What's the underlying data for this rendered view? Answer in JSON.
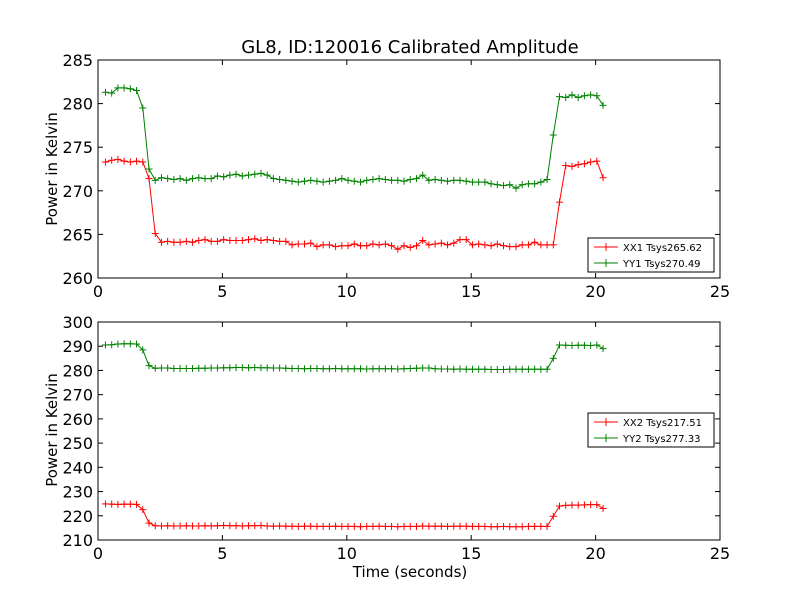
{
  "colors": {
    "red": "#ff0000",
    "green": "#008000",
    "axis": "#000000",
    "background": "#ffffff"
  },
  "chart_data": [
    {
      "type": "line",
      "title": "GL8, ID:120016 Calibrated Amplitude",
      "xlabel": "",
      "ylabel": "Power in Kelvin",
      "xlim": [
        0,
        25
      ],
      "ylim": [
        260,
        285
      ],
      "xticks": [
        0,
        5,
        10,
        15,
        20,
        25
      ],
      "yticks": [
        260,
        265,
        270,
        275,
        280,
        285
      ],
      "legend_position": "lower-right",
      "grid": false,
      "series": [
        {
          "name": "XX1 Tsys265.62",
          "color": "red",
          "x": [
            0.3,
            0.55,
            0.8,
            1.05,
            1.3,
            1.55,
            1.8,
            2.05,
            2.3,
            2.55,
            2.8,
            3.05,
            3.3,
            3.55,
            3.8,
            4.05,
            4.3,
            4.55,
            4.8,
            5.05,
            5.3,
            5.55,
            5.8,
            6.05,
            6.3,
            6.55,
            6.8,
            7.05,
            7.3,
            7.55,
            7.8,
            8.05,
            8.3,
            8.55,
            8.8,
            9.05,
            9.3,
            9.55,
            9.8,
            10.05,
            10.3,
            10.55,
            10.8,
            11.05,
            11.3,
            11.55,
            11.8,
            12.05,
            12.3,
            12.55,
            12.8,
            13.05,
            13.3,
            13.55,
            13.8,
            14.05,
            14.3,
            14.55,
            14.8,
            15.05,
            15.3,
            15.55,
            15.8,
            16.05,
            16.3,
            16.55,
            16.8,
            17.05,
            17.3,
            17.55,
            17.8,
            18.05,
            18.3,
            18.55,
            18.8,
            19.05,
            19.3,
            19.55,
            19.8,
            20.05,
            20.3
          ],
          "y": [
            273.3,
            273.5,
            273.6,
            273.4,
            273.3,
            273.4,
            273.3,
            271.4,
            265.1,
            264.1,
            264.2,
            264.1,
            264.1,
            264.2,
            264.1,
            264.3,
            264.4,
            264.2,
            264.2,
            264.4,
            264.3,
            264.3,
            264.3,
            264.4,
            264.5,
            264.3,
            264.4,
            264.3,
            264.2,
            264.2,
            263.8,
            263.9,
            263.9,
            264.0,
            263.6,
            263.8,
            263.8,
            263.6,
            263.7,
            263.7,
            263.9,
            263.7,
            263.7,
            263.9,
            263.8,
            263.9,
            263.7,
            263.3,
            263.7,
            263.5,
            263.7,
            264.3,
            263.8,
            263.9,
            264.0,
            263.8,
            264.0,
            264.4,
            264.4,
            263.8,
            263.9,
            263.8,
            263.7,
            263.9,
            263.7,
            263.6,
            263.6,
            263.8,
            263.8,
            264.1,
            263.8,
            263.8,
            263.8,
            268.7,
            272.9,
            272.8,
            273.0,
            273.1,
            273.3,
            273.4,
            271.5
          ]
        },
        {
          "name": "YY1 Tsys270.49",
          "color": "green",
          "x": [
            0.3,
            0.55,
            0.8,
            1.05,
            1.3,
            1.55,
            1.8,
            2.05,
            2.3,
            2.55,
            2.8,
            3.05,
            3.3,
            3.55,
            3.8,
            4.05,
            4.3,
            4.55,
            4.8,
            5.05,
            5.3,
            5.55,
            5.8,
            6.05,
            6.3,
            6.55,
            6.8,
            7.05,
            7.3,
            7.55,
            7.8,
            8.05,
            8.3,
            8.55,
            8.8,
            9.05,
            9.3,
            9.55,
            9.8,
            10.05,
            10.3,
            10.55,
            10.8,
            11.05,
            11.3,
            11.55,
            11.8,
            12.05,
            12.3,
            12.55,
            12.8,
            13.05,
            13.3,
            13.55,
            13.8,
            14.05,
            14.3,
            14.55,
            14.8,
            15.05,
            15.3,
            15.55,
            15.8,
            16.05,
            16.3,
            16.55,
            16.8,
            17.05,
            17.3,
            17.55,
            17.8,
            18.05,
            18.3,
            18.55,
            18.8,
            19.05,
            19.3,
            19.55,
            19.8,
            20.05,
            20.3
          ],
          "y": [
            281.3,
            281.2,
            281.8,
            281.8,
            281.7,
            281.5,
            279.5,
            272.5,
            271.2,
            271.5,
            271.4,
            271.3,
            271.4,
            271.2,
            271.4,
            271.5,
            271.4,
            271.4,
            271.7,
            271.6,
            271.8,
            271.9,
            271.7,
            271.8,
            271.9,
            272.0,
            271.8,
            271.4,
            271.3,
            271.2,
            271.1,
            271.0,
            271.1,
            271.2,
            271.1,
            271.0,
            271.1,
            271.2,
            271.4,
            271.2,
            271.1,
            271.0,
            271.2,
            271.3,
            271.4,
            271.3,
            271.2,
            271.2,
            271.1,
            271.3,
            271.4,
            271.8,
            271.2,
            271.3,
            271.2,
            271.1,
            271.2,
            271.2,
            271.1,
            271.0,
            271.0,
            271.0,
            270.8,
            270.7,
            270.6,
            270.7,
            270.3,
            270.7,
            270.8,
            270.8,
            271.0,
            271.3,
            276.4,
            280.8,
            280.7,
            281.0,
            280.7,
            280.9,
            281.0,
            280.9,
            279.8
          ]
        }
      ]
    },
    {
      "type": "line",
      "title": "",
      "xlabel": "Time (seconds)",
      "ylabel": "Power in Kelvin",
      "xlim": [
        0,
        25
      ],
      "ylim": [
        210,
        300
      ],
      "xticks": [
        0,
        5,
        10,
        15,
        20,
        25
      ],
      "yticks": [
        210,
        220,
        230,
        240,
        250,
        260,
        270,
        280,
        290,
        300
      ],
      "legend_position": "center-right",
      "grid": false,
      "series": [
        {
          "name": "XX2 Tsys217.51",
          "color": "red",
          "x": [
            0.3,
            0.55,
            0.8,
            1.05,
            1.3,
            1.55,
            1.8,
            2.05,
            2.3,
            2.55,
            2.8,
            3.05,
            3.3,
            3.55,
            3.8,
            4.05,
            4.3,
            4.55,
            4.8,
            5.05,
            5.3,
            5.55,
            5.8,
            6.05,
            6.3,
            6.55,
            6.8,
            7.05,
            7.3,
            7.55,
            7.8,
            8.05,
            8.3,
            8.55,
            8.8,
            9.05,
            9.3,
            9.55,
            9.8,
            10.05,
            10.3,
            10.55,
            10.8,
            11.05,
            11.3,
            11.55,
            11.8,
            12.05,
            12.3,
            12.55,
            12.8,
            13.05,
            13.3,
            13.55,
            13.8,
            14.05,
            14.3,
            14.55,
            14.8,
            15.05,
            15.3,
            15.55,
            15.8,
            16.05,
            16.3,
            16.55,
            16.8,
            17.05,
            17.3,
            17.55,
            17.8,
            18.05,
            18.3,
            18.55,
            18.8,
            19.05,
            19.3,
            19.55,
            19.8,
            20.05,
            20.3
          ],
          "y": [
            224.9,
            224.8,
            224.7,
            224.8,
            224.8,
            224.7,
            222.5,
            217.0,
            215.9,
            215.8,
            215.9,
            215.8,
            215.8,
            215.9,
            215.8,
            215.8,
            215.9,
            215.8,
            215.9,
            216.0,
            215.9,
            215.9,
            215.8,
            215.9,
            215.9,
            216.0,
            215.8,
            215.7,
            215.8,
            215.7,
            215.7,
            215.6,
            215.7,
            215.7,
            215.6,
            215.6,
            215.6,
            215.7,
            215.6,
            215.6,
            215.6,
            215.5,
            215.6,
            215.6,
            215.7,
            215.6,
            215.6,
            215.5,
            215.6,
            215.6,
            215.6,
            215.8,
            215.7,
            215.7,
            215.7,
            215.6,
            215.7,
            215.7,
            215.7,
            215.6,
            215.6,
            215.6,
            215.5,
            215.5,
            215.6,
            215.5,
            215.5,
            215.5,
            215.6,
            215.6,
            215.6,
            215.6,
            219.8,
            224.0,
            224.3,
            224.4,
            224.4,
            224.5,
            224.6,
            224.6,
            223.0
          ]
        },
        {
          "name": "YY2 Tsys277.33",
          "color": "green",
          "x": [
            0.3,
            0.55,
            0.8,
            1.05,
            1.3,
            1.55,
            1.8,
            2.05,
            2.3,
            2.55,
            2.8,
            3.05,
            3.3,
            3.55,
            3.8,
            4.05,
            4.3,
            4.55,
            4.8,
            5.05,
            5.3,
            5.55,
            5.8,
            6.05,
            6.3,
            6.55,
            6.8,
            7.05,
            7.3,
            7.55,
            7.8,
            8.05,
            8.3,
            8.55,
            8.8,
            9.05,
            9.3,
            9.55,
            9.8,
            10.05,
            10.3,
            10.55,
            10.8,
            11.05,
            11.3,
            11.55,
            11.8,
            12.05,
            12.3,
            12.55,
            12.8,
            13.05,
            13.3,
            13.55,
            13.8,
            14.05,
            14.3,
            14.55,
            14.8,
            15.05,
            15.3,
            15.55,
            15.8,
            16.05,
            16.3,
            16.55,
            16.8,
            17.05,
            17.3,
            17.55,
            17.8,
            18.05,
            18.3,
            18.55,
            18.8,
            19.05,
            19.3,
            19.55,
            19.8,
            20.05,
            20.3
          ],
          "y": [
            290.5,
            290.6,
            290.9,
            291.0,
            291.0,
            290.9,
            288.5,
            282.0,
            280.9,
            281.0,
            281.0,
            280.8,
            280.8,
            280.8,
            280.8,
            280.9,
            280.9,
            281.0,
            281.0,
            281.1,
            281.1,
            281.2,
            281.2,
            281.1,
            281.2,
            281.1,
            281.1,
            281.0,
            281.0,
            280.9,
            280.8,
            280.8,
            280.7,
            280.8,
            280.8,
            280.7,
            280.7,
            280.8,
            280.7,
            280.7,
            280.7,
            280.7,
            280.6,
            280.7,
            280.7,
            280.7,
            280.7,
            280.6,
            280.7,
            280.8,
            280.9,
            281.0,
            281.0,
            280.7,
            280.6,
            280.6,
            280.5,
            280.6,
            280.5,
            280.5,
            280.5,
            280.5,
            280.4,
            280.4,
            280.4,
            280.5,
            280.5,
            280.5,
            280.5,
            280.5,
            280.5,
            280.5,
            285.0,
            290.5,
            290.4,
            290.3,
            290.4,
            290.4,
            290.3,
            290.5,
            289.0
          ]
        }
      ]
    }
  ]
}
